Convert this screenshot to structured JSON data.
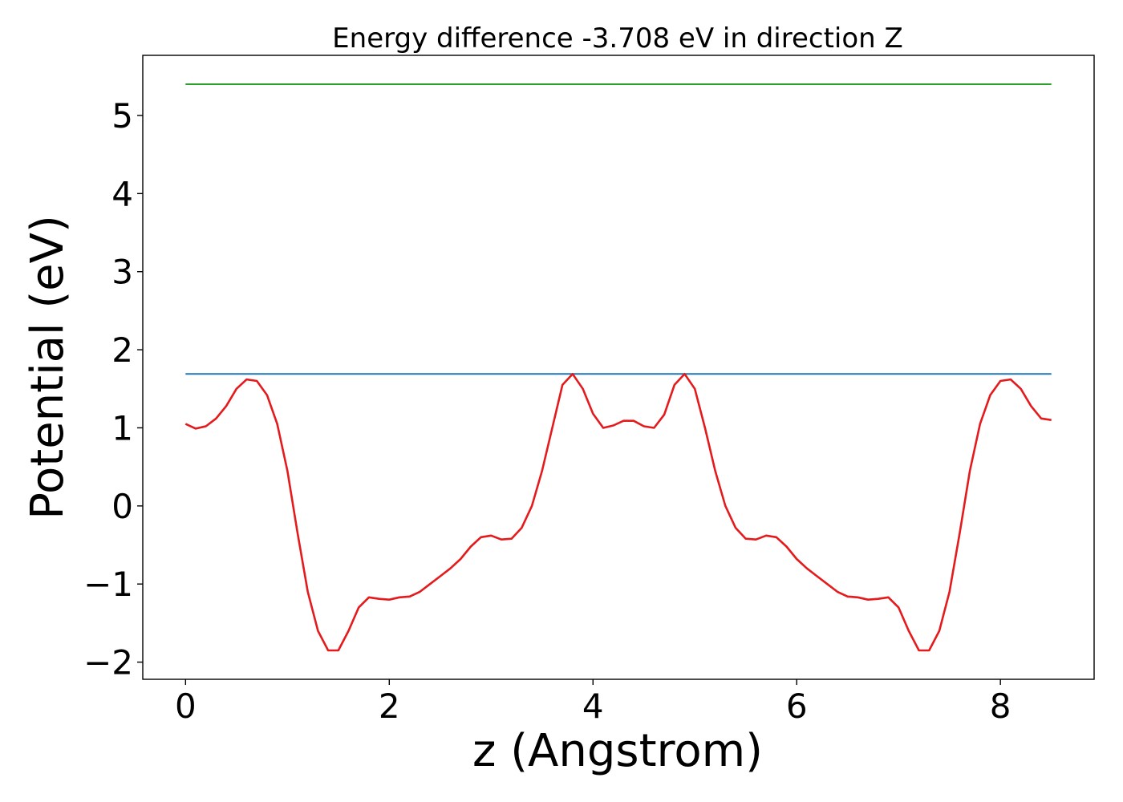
{
  "chart_data": {
    "type": "line",
    "title": "Energy difference -3.708 eV in direction Z",
    "xlabel": "z (Angstrom)",
    "ylabel": "Potential (eV)",
    "xlim": [
      -0.42,
      8.92
    ],
    "ylim": [
      -2.22,
      5.77
    ],
    "xticks": [
      0,
      2,
      4,
      6,
      8
    ],
    "yticks": [
      -2,
      -1,
      0,
      1,
      2,
      3,
      4,
      5
    ],
    "xtick_labels": [
      "0",
      "2",
      "4",
      "6",
      "8"
    ],
    "ytick_labels": [
      "−2",
      "−1",
      "0",
      "1",
      "2",
      "3",
      "4",
      "5"
    ],
    "grid": false,
    "series": [
      {
        "color": "#2ca02c",
        "x": [
          0,
          8.5
        ],
        "y": [
          5.4,
          5.4
        ]
      },
      {
        "color": "#1f77b4",
        "x": [
          0,
          8.5
        ],
        "y": [
          1.69,
          1.69
        ]
      },
      {
        "color": "#e41a1c",
        "x": [
          0,
          0.1,
          0.2,
          0.3,
          0.4,
          0.5,
          0.6,
          0.7,
          0.8,
          0.9,
          1.0,
          1.1,
          1.2,
          1.3,
          1.4,
          1.5,
          1.6,
          1.7,
          1.8,
          1.9,
          2.0,
          2.1,
          2.2,
          2.3,
          2.4,
          2.5,
          2.6,
          2.7,
          2.8,
          2.9,
          3.0,
          3.1,
          3.2,
          3.3,
          3.4,
          3.5,
          3.6,
          3.7,
          3.8,
          3.9,
          4.0,
          4.1,
          4.2,
          4.3,
          4.4,
          4.5,
          4.6,
          4.7,
          4.8,
          4.9,
          5.0,
          5.1,
          5.2,
          5.3,
          5.4,
          5.5,
          5.6,
          5.7,
          5.8,
          5.9,
          6.0,
          6.1,
          6.2,
          6.3,
          6.4,
          6.5,
          6.6,
          6.7,
          6.8,
          6.9,
          7.0,
          7.1,
          7.2,
          7.3,
          7.4,
          7.5,
          7.6,
          7.7,
          7.8,
          7.9,
          8.0,
          8.1,
          8.2,
          8.3,
          8.4,
          8.5
        ],
        "y": [
          1.05,
          0.99,
          1.02,
          1.12,
          1.28,
          1.5,
          1.62,
          1.6,
          1.42,
          1.05,
          0.45,
          -0.35,
          -1.1,
          -1.6,
          -1.85,
          -1.85,
          -1.6,
          -1.3,
          -1.17,
          -1.19,
          -1.2,
          -1.17,
          -1.16,
          -1.1,
          -1.0,
          -0.9,
          -0.8,
          -0.68,
          -0.52,
          -0.4,
          -0.38,
          -0.43,
          -0.42,
          -0.28,
          0.0,
          0.45,
          1.0,
          1.55,
          1.69,
          1.5,
          1.18,
          1.0,
          1.03,
          1.09,
          1.09,
          1.02,
          1.0,
          1.17,
          1.55,
          1.69,
          1.5,
          1.0,
          0.45,
          0.0,
          -0.28,
          -0.42,
          -0.43,
          -0.38,
          -0.4,
          -0.52,
          -0.68,
          -0.8,
          -0.9,
          -1.0,
          -1.1,
          -1.16,
          -1.17,
          -1.2,
          -1.19,
          -1.17,
          -1.3,
          -1.6,
          -1.85,
          -1.85,
          -1.6,
          -1.1,
          -0.35,
          0.45,
          1.05,
          1.42,
          1.6,
          1.62,
          1.5,
          1.28,
          1.12,
          1.1
        ]
      }
    ]
  }
}
